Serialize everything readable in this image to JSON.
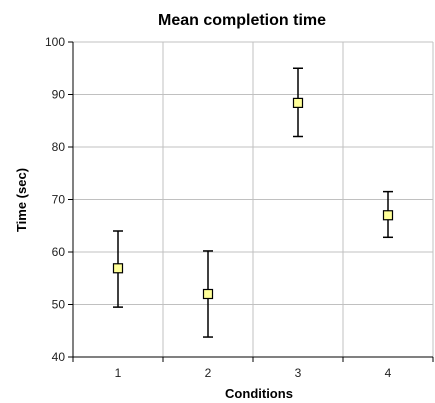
{
  "chart_data": {
    "type": "scatter",
    "title": "Mean completion time",
    "xlabel": "Conditions",
    "ylabel": "Time (sec)",
    "categories": [
      "1",
      "2",
      "3",
      "4"
    ],
    "ylim": [
      40,
      100
    ],
    "yticks": [
      40,
      50,
      60,
      70,
      80,
      90,
      100
    ],
    "grid": true,
    "legend": "none",
    "series": [
      {
        "values": [
          56.9,
          52.0,
          88.4,
          67.0
        ],
        "error_low": [
          49.5,
          43.8,
          82.0,
          62.8
        ],
        "error_high": [
          64.0,
          60.2,
          95.0,
          71.5
        ]
      }
    ],
    "colors": {
      "marker_fill": "#ffff99",
      "marker_stroke": "#000000",
      "error_bar": "#000000",
      "grid": "#c0c0c0",
      "axis": "#000000"
    }
  }
}
